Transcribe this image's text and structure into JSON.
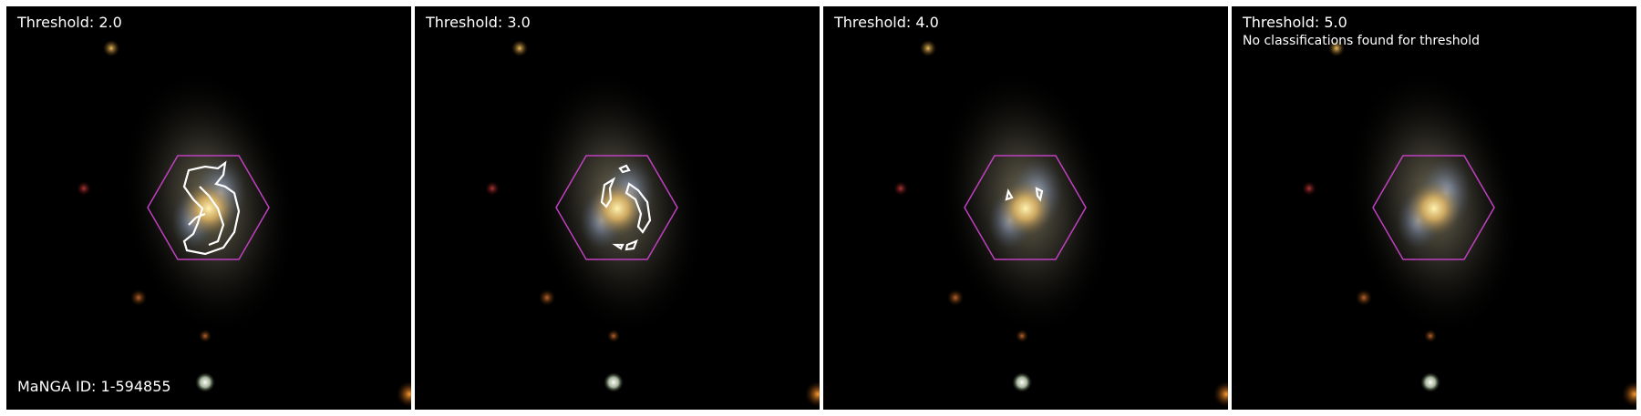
{
  "panels": [
    {
      "threshold_label": "Threshold: 2.0",
      "note": ""
    },
    {
      "threshold_label": "Threshold: 3.0",
      "note": ""
    },
    {
      "threshold_label": "Threshold: 4.0",
      "note": ""
    },
    {
      "threshold_label": "Threshold: 5.0",
      "note": "No classifications found for threshold"
    }
  ],
  "manga_id_label": "MaNGA ID: 1-594855",
  "colors": {
    "background": "#000000",
    "hexagon": "#c040c0",
    "contour": "#ffffff",
    "text": "#ffffff"
  }
}
